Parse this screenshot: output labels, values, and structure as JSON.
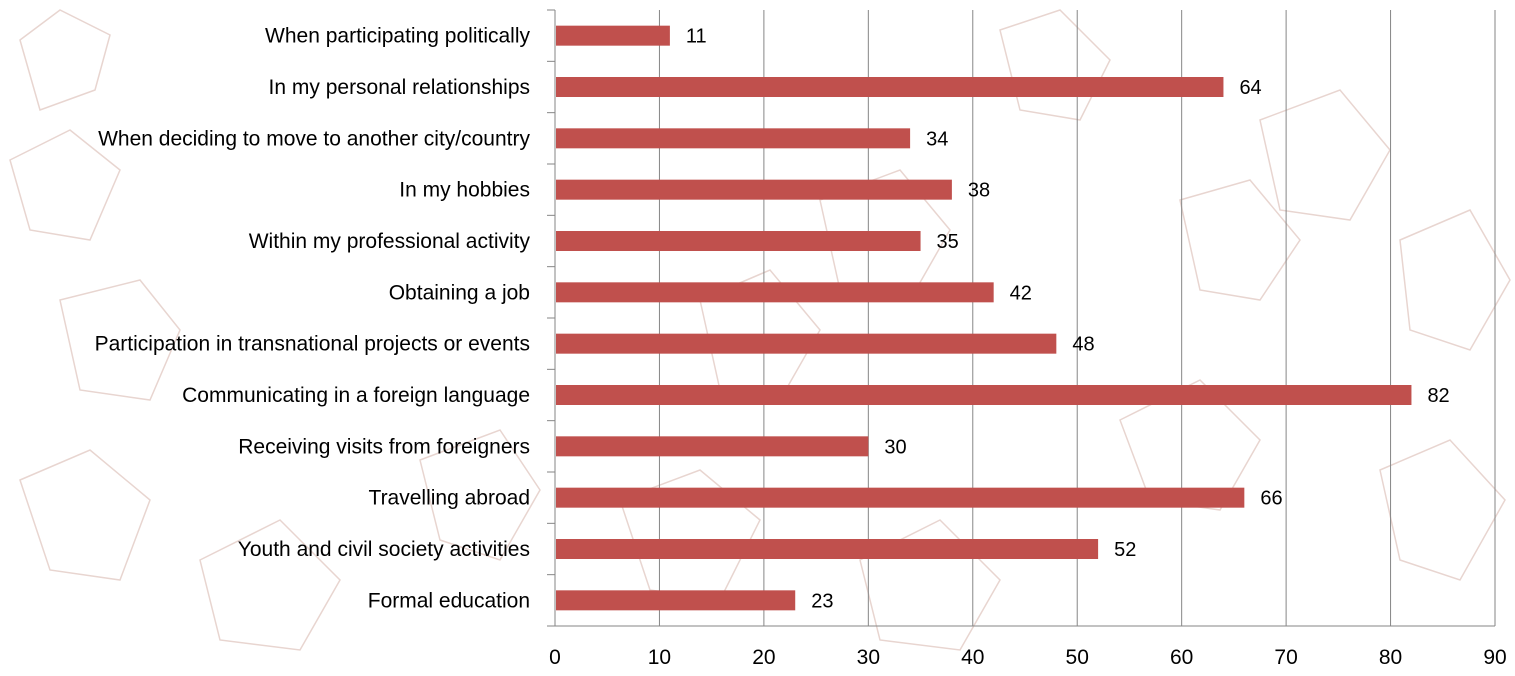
{
  "chart_data": {
    "type": "bar",
    "orientation": "horizontal",
    "title": "",
    "xlabel": "",
    "ylabel": "",
    "categories": [
      "When participating politically",
      "In my personal relationships",
      "When deciding to move to another city/country",
      "In my hobbies",
      "Within my professional activity",
      "Obtaining a job",
      "Participation in transnational projects or events",
      "Communicating in a foreign language",
      "Receiving visits from foreigners",
      "Travelling abroad",
      "Youth and civil society activities",
      "Formal education"
    ],
    "values": [
      11,
      64,
      34,
      38,
      35,
      42,
      48,
      82,
      30,
      66,
      52,
      23
    ],
    "value_labels": [
      "11",
      "64",
      "34",
      "38",
      "35",
      "42",
      "48",
      "82",
      "30",
      "66",
      "52",
      "23"
    ],
    "xlim": [
      0,
      90
    ],
    "xticks": [
      "0",
      "10",
      "20",
      "30",
      "40",
      "50",
      "60",
      "70",
      "80",
      "90"
    ],
    "grid": "vertical",
    "legend": "none",
    "bar_color": "#C0504D",
    "grid_color": "#868686",
    "axis_color": "#868686",
    "background_motif_color": "#E8D5D0"
  }
}
